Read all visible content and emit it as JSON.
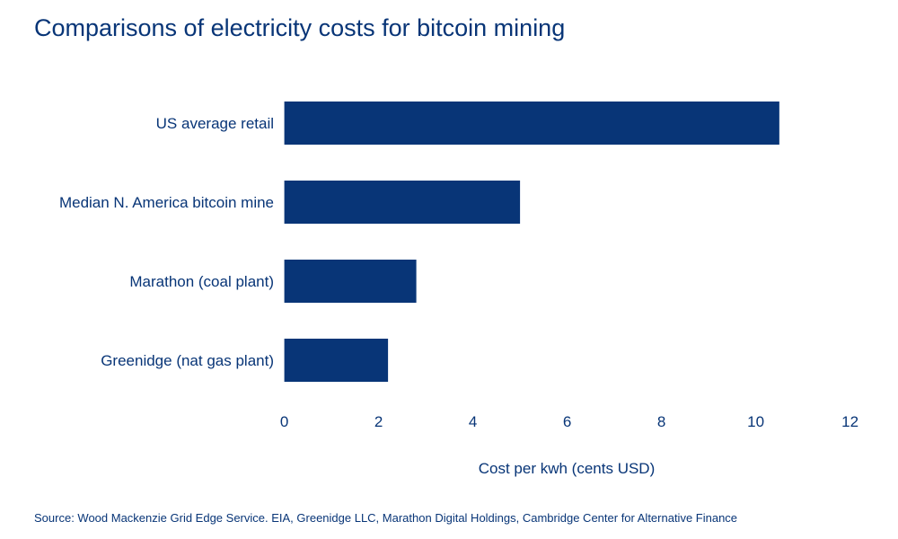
{
  "chart_data": {
    "type": "bar",
    "orientation": "horizontal",
    "title": "Comparisons of electricity costs for bitcoin mining",
    "categories": [
      "US average retail",
      "Median N. America bitcoin mine",
      "Marathon (coal plant)",
      "Greenidge (nat gas plant)"
    ],
    "values": [
      10.5,
      5.0,
      2.8,
      2.2
    ],
    "xlabel": "Cost per kwh (cents USD)",
    "ylabel": "",
    "xlim": [
      0,
      12
    ],
    "xticks": [
      "0",
      "2",
      "4",
      "6",
      "8",
      "10",
      "12"
    ],
    "grid": false,
    "legend": "none",
    "bar_color": "#083577"
  },
  "source": "Source: Wood Mackenzie Grid Edge Service. EIA, Greenidge LLC, Marathon Digital Holdings, Cambridge Center for Alternative Finance"
}
